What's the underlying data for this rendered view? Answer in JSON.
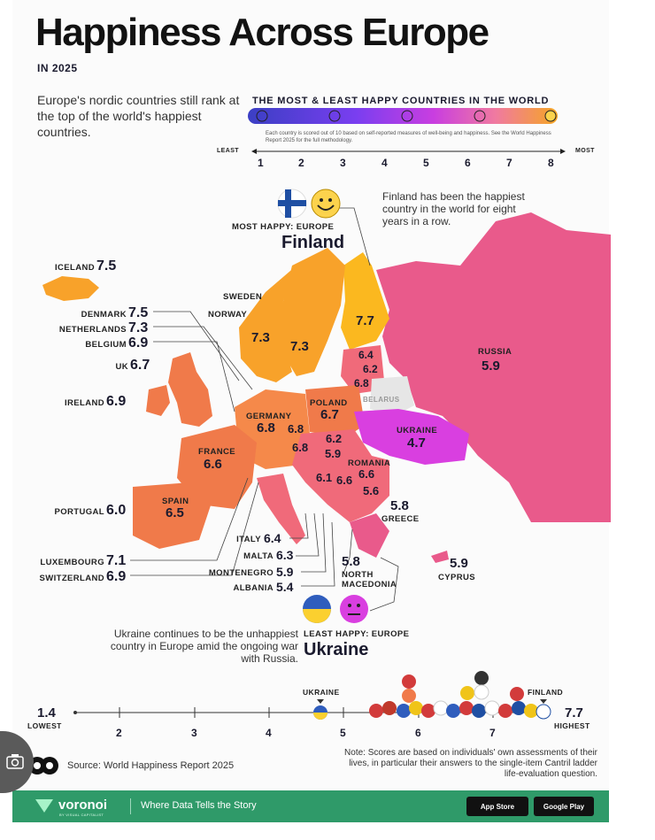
{
  "header": {
    "title": "Happiness Across Europe",
    "subtitle": "IN 2025",
    "intro": "Europe's nordic countries still rank at the top of the world's happiest countries."
  },
  "scale": {
    "title": "THE MOST & LEAST HAPPY COUNTRIES IN THE WORLD",
    "note": "Each country is scored out of 10 based on self-reported measures of well-being and happiness. See the World Happiness Report 2025 for the full methodology.",
    "least_label": "LEAST",
    "most_label": "MOST",
    "ticks": [
      "1",
      "2",
      "3",
      "4",
      "5",
      "6",
      "7",
      "8"
    ],
    "gradient": [
      "#3b3fc4",
      "#7a3ef0",
      "#c93ee0",
      "#f07aa0",
      "#f5a623"
    ]
  },
  "most_happy": {
    "tag": "MOST HAPPY: EUROPE",
    "country": "Finland",
    "note": "Finland has been the happiest country in the world for eight years in a row."
  },
  "least_happy": {
    "tag": "LEAST HAPPY: EUROPE",
    "country": "Ukraine",
    "note": "Ukraine continues to be the unhappiest country in Europe amid the ongoing war with Russia."
  },
  "left_labels": [
    {
      "name": "ICELAND",
      "value": "7.5"
    },
    {
      "name": "DENMARK",
      "value": "7.5"
    },
    {
      "name": "NETHERLANDS",
      "value": "7.3"
    },
    {
      "name": "BELGIUM",
      "value": "6.9"
    },
    {
      "name": "UK",
      "value": "6.7"
    },
    {
      "name": "IRELAND",
      "value": "6.9"
    },
    {
      "name": "PORTUGAL",
      "value": "6.0"
    },
    {
      "name": "LUXEMBOURG",
      "value": "7.1"
    },
    {
      "name": "SWITZERLAND",
      "value": "6.9"
    }
  ],
  "mid_labels": [
    {
      "name": "ITALY",
      "value": "6.4"
    },
    {
      "name": "MALTA",
      "value": "6.3"
    },
    {
      "name": "MONTENEGRO",
      "value": "5.9"
    },
    {
      "name": "ALBANIA",
      "value": "5.4"
    }
  ],
  "map_labels": {
    "sweden": "SWEDEN",
    "norway": "NORWAY",
    "norway_val": "7.3",
    "sweden_val": "7.3",
    "finland_val": "7.7",
    "russia": "RUSSIA",
    "russia_val": "5.9",
    "estonia_val": "6.4",
    "latvia_val": "6.2",
    "lithuania_val": "6.8",
    "belarus": "BELARUS",
    "poland": "POLAND",
    "poland_val": "6.7",
    "germany": "GERMANY",
    "germany_val": "6.8",
    "czech_val": "6.8",
    "austria_val": "6.8",
    "france": "FRANCE",
    "france_val": "6.6",
    "slovakia_val": "6.2",
    "hungary_val": "5.9",
    "ukraine": "UKRAINE",
    "ukraine_val": "4.7",
    "romania": "ROMANIA",
    "romania_val": "6.6",
    "croatia_val": "6.1",
    "serbia_val": "6.6",
    "bulgaria_val": "5.6",
    "spain": "SPAIN",
    "spain_val": "6.5",
    "greece": "GREECE",
    "greece_val": "5.8",
    "nmacedonia": "NORTH MACEDONIA",
    "nmacedonia_val": "5.8",
    "cyprus": "CYPRUS",
    "cyprus_val": "5.9"
  },
  "bottom_axis": {
    "low_value": "1.4",
    "low_label": "LOWEST",
    "high_value": "7.7",
    "high_label": "HIGHEST",
    "ticks": [
      "2",
      "3",
      "4",
      "5",
      "6",
      "7"
    ],
    "ukraine_marker": "UKRAINE",
    "finland_marker": "FINLAND"
  },
  "footer": {
    "source": "Source: World Happiness Report 2025",
    "note": "Note: Scores are based on individuals' own assessments of their lives, in particular their answers to the single-item Cantril ladder life-evaluation question.",
    "brand": "voronoi",
    "brand_sub": "BY VISUAL CAPITALIST",
    "tagline": "Where Data Tells the Story",
    "app_store": "App Store",
    "google_play": "Google Play"
  }
}
